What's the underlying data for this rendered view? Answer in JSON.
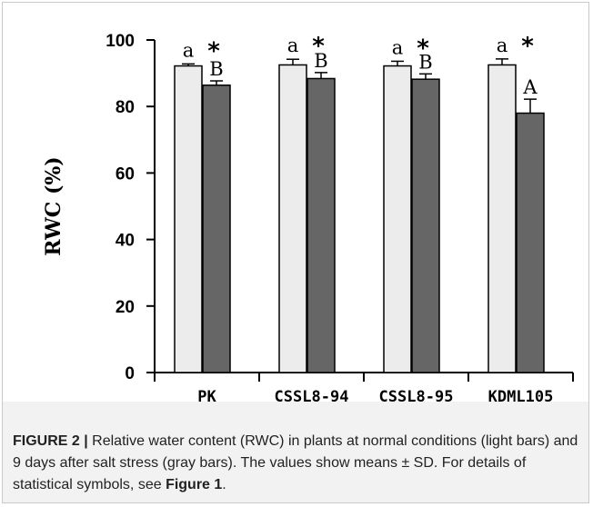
{
  "chart_data": {
    "type": "bar",
    "ylabel": "RWC (%)",
    "yticks": [
      "0",
      "20",
      "40",
      "60",
      "80",
      "100"
    ],
    "ylim": [
      0,
      100
    ],
    "categories": [
      "PK",
      "CSSL8-94",
      "CSSL8-95",
      "KDML105"
    ],
    "series": [
      {
        "key": "normal",
        "color": "#ececec",
        "values": [
          92.2,
          92.5,
          92.2,
          92.5
        ],
        "sd": [
          0.6,
          1.7,
          1.4,
          1.8
        ]
      },
      {
        "key": "salt",
        "color": "#666666",
        "values": [
          86.4,
          88.4,
          88.2,
          78.0
        ],
        "sd": [
          1.3,
          1.8,
          1.6,
          4.2
        ]
      }
    ],
    "annotations": [
      {
        "normal_letter": "a",
        "salt_letter": "B",
        "star": "*"
      },
      {
        "normal_letter": "a",
        "salt_letter": "B",
        "star": "*"
      },
      {
        "normal_letter": "a",
        "salt_letter": "B",
        "star": "*"
      },
      {
        "normal_letter": "a",
        "salt_letter": "A",
        "star": "*"
      }
    ]
  },
  "caption": {
    "label": "FIGURE 2 |",
    "text": " Relative water content (RWC) in plants at normal conditions (light bars) and 9 days after salt stress (gray bars). The values show means ± SD. For details of statistical symbols, see ",
    "ref": "Figure 1",
    "end": "."
  }
}
